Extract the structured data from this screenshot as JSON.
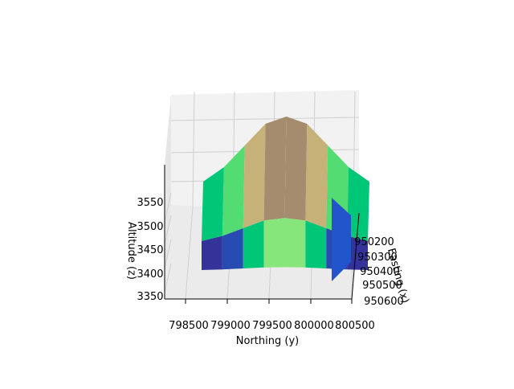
{
  "chart_data": {
    "type": "surface",
    "xlabel": "Northing (y)",
    "ylabel": "Easting (x)",
    "zlabel": "Altitude (z)",
    "north_ticks": [
      "798500",
      "799000",
      "799500",
      "800000",
      "800500"
    ],
    "east_ticks": [
      "950200",
      "950300",
      "950400",
      "950500",
      "950600"
    ],
    "z_ticks": [
      "3350",
      "3400",
      "3450",
      "3500",
      "3550"
    ],
    "north_grid": [
      798500,
      798750,
      799000,
      799250,
      799500,
      799750,
      800000,
      800250,
      800500
    ],
    "east_grid": [
      950100,
      950600
    ],
    "altitude_profile": [
      3380,
      3420,
      3480,
      3540,
      3560,
      3540,
      3480,
      3420,
      3380
    ],
    "colormap_range": [
      3350,
      3560
    ],
    "grid": true
  }
}
